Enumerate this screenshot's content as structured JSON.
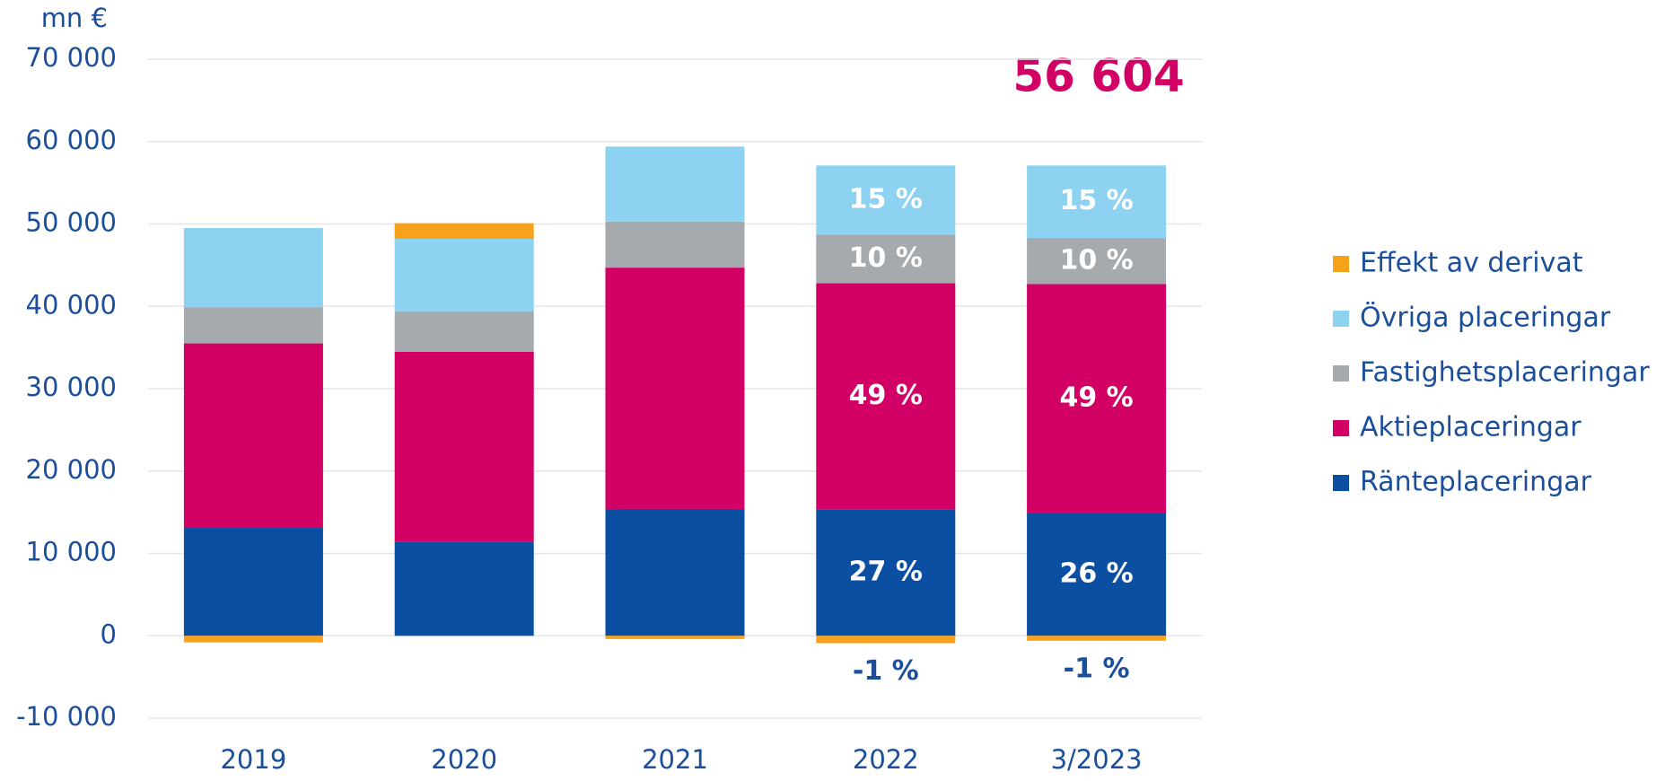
{
  "chart_data": {
    "type": "stacked_bar",
    "annotation": "56 604",
    "y_label": "mn €",
    "categories": [
      "2019",
      "2020",
      "2021",
      "2022",
      "3/2023"
    ],
    "series": [
      {
        "name": "Ränteplaceringar",
        "color": "#0b4fa3",
        "values": [
          13100,
          11400,
          15400,
          15300,
          14900
        ],
        "share_labels": [
          null,
          null,
          null,
          "27 %",
          "26 %"
        ]
      },
      {
        "name": "Aktieplaceringar",
        "color": "#d20064",
        "values": [
          22400,
          23100,
          29300,
          27500,
          27800
        ],
        "share_labels": [
          null,
          null,
          null,
          "49 %",
          "49 %"
        ]
      },
      {
        "name": "Fastighetsplaceringar",
        "color": "#a4aaae",
        "values": [
          4400,
          4900,
          5600,
          5900,
          5600
        ],
        "share_labels": [
          null,
          null,
          null,
          "10 %",
          "10 %"
        ]
      },
      {
        "name": "Övriga placeringar",
        "color": "#8dd3f1",
        "values": [
          9600,
          8800,
          9100,
          8400,
          8800
        ],
        "share_labels": [
          null,
          null,
          null,
          "15 %",
          "15 %"
        ]
      },
      {
        "name": "Effekt av derivat",
        "color": "#f7a21b",
        "values": [
          -800,
          1900,
          -400,
          -900,
          -600
        ],
        "share_labels": [
          null,
          null,
          null,
          "-1 %",
          "-1 %"
        ]
      }
    ],
    "ylim": [
      -10000,
      70000
    ],
    "yticks": [
      {
        "value": -10000,
        "label": "-10 000"
      },
      0,
      {
        "value": 10000,
        "label": "10 000"
      },
      {
        "value": 20000,
        "label": "20 000"
      },
      {
        "value": 30000,
        "label": "30 000"
      },
      {
        "value": 40000,
        "label": "40 000"
      },
      {
        "value": 50000,
        "label": "50 000"
      },
      {
        "value": 60000,
        "label": "60 000"
      },
      {
        "value": 70000,
        "label": "70 000"
      }
    ],
    "grid": true,
    "legend": "right"
  }
}
